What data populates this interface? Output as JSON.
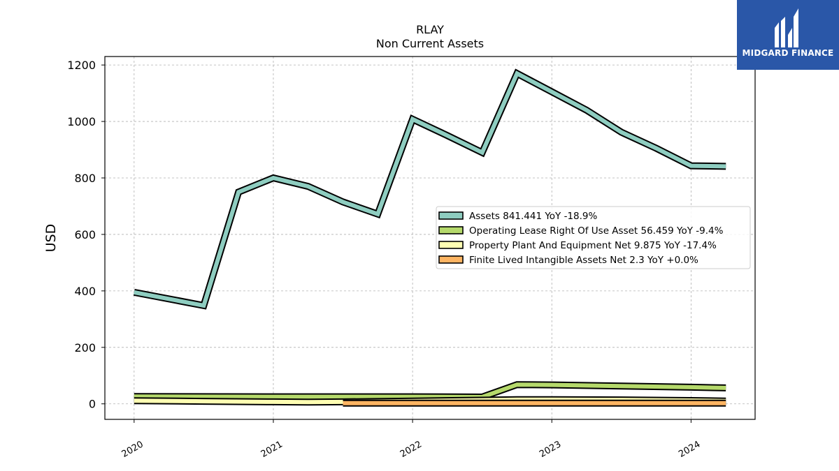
{
  "header": {
    "ticker": "RLAY",
    "subtitle": "Non Current  Assets"
  },
  "brand": {
    "name": "MIDGARD FINANCE",
    "color": "#2a57a8"
  },
  "chart_data": {
    "type": "line",
    "ylabel": "USD",
    "xlabel": "",
    "ylim": [
      -55,
      1230
    ],
    "xlim": [
      2019.79,
      2024.46
    ],
    "yticks": [
      0,
      200,
      400,
      600,
      800,
      1000,
      1200
    ],
    "xticks": [
      2020,
      2021,
      2022,
      2023,
      2024
    ],
    "grid": true,
    "legend_position": "center-right",
    "series": [
      {
        "name": "Assets",
        "legend": "Assets  841.441 YoY -18.9%",
        "color": "#8ecdc0",
        "points": [
          [
            2020.0,
            395
          ],
          [
            2020.5,
            348
          ],
          [
            2020.75,
            750
          ],
          [
            2021.0,
            800
          ],
          [
            2021.25,
            770
          ],
          [
            2021.5,
            715
          ],
          [
            2021.75,
            672
          ],
          [
            2022.0,
            1008
          ],
          [
            2022.25,
            950
          ],
          [
            2022.5,
            890
          ],
          [
            2022.75,
            1170
          ],
          [
            2023.0,
            1105
          ],
          [
            2023.25,
            1040
          ],
          [
            2023.5,
            962
          ],
          [
            2023.75,
            905
          ],
          [
            2024.0,
            843
          ],
          [
            2024.25,
            841
          ]
        ]
      },
      {
        "name": "Operating Lease Right Of Use Asset",
        "legend": "Operating Lease Right Of Use Asset  56.459 YoY -9.4%",
        "color": "#b5d96b",
        "points": [
          [
            2020.0,
            26
          ],
          [
            2021.0,
            25
          ],
          [
            2022.0,
            25
          ],
          [
            2022.5,
            24
          ],
          [
            2022.75,
            68
          ],
          [
            2023.0,
            67
          ],
          [
            2023.5,
            63
          ],
          [
            2024.0,
            59
          ],
          [
            2024.25,
            56.459
          ]
        ]
      },
      {
        "name": "Property Plant And Equipment Net",
        "legend": "Property Plant And Equipment Net  9.875 YoY -17.4%",
        "color": "#fefeb3",
        "points": [
          [
            2020.0,
            11
          ],
          [
            2020.5,
            9
          ],
          [
            2021.0,
            7
          ],
          [
            2021.25,
            6
          ],
          [
            2021.5,
            7
          ],
          [
            2022.0,
            10
          ],
          [
            2022.5,
            13
          ],
          [
            2022.75,
            15
          ],
          [
            2023.0,
            15
          ],
          [
            2023.5,
            14
          ],
          [
            2024.0,
            11.8
          ],
          [
            2024.25,
            9.875
          ]
        ]
      },
      {
        "name": "Finite Lived Intangible Assets Net",
        "legend": "Finite Lived Intangible Assets Net  2.3 YoY +0.0%",
        "color": "#fdb462",
        "points": [
          [
            2021.5,
            2.3
          ],
          [
            2022.0,
            2.3
          ],
          [
            2022.5,
            2.3
          ],
          [
            2023.0,
            2.3
          ],
          [
            2023.5,
            2.3
          ],
          [
            2024.0,
            2.3
          ],
          [
            2024.25,
            2.3
          ]
        ]
      }
    ]
  }
}
